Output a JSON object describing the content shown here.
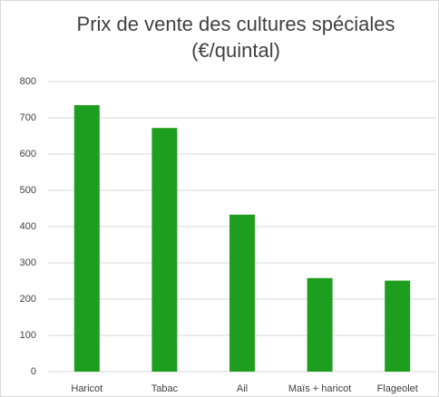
{
  "chart_data": {
    "type": "bar",
    "title": "Prix de vente des cultures spéciales",
    "subtitle": "(€/quintal)",
    "categories": [
      "Haricot",
      "Tabac",
      "Ail",
      "Maïs + haricot",
      "Flageolet"
    ],
    "values": [
      735,
      672,
      433,
      258,
      251
    ],
    "color": "#1e9e1e",
    "ylim": [
      0,
      800
    ],
    "yticks": [
      0,
      100,
      200,
      300,
      400,
      500,
      600,
      700,
      800
    ],
    "grid": true
  }
}
